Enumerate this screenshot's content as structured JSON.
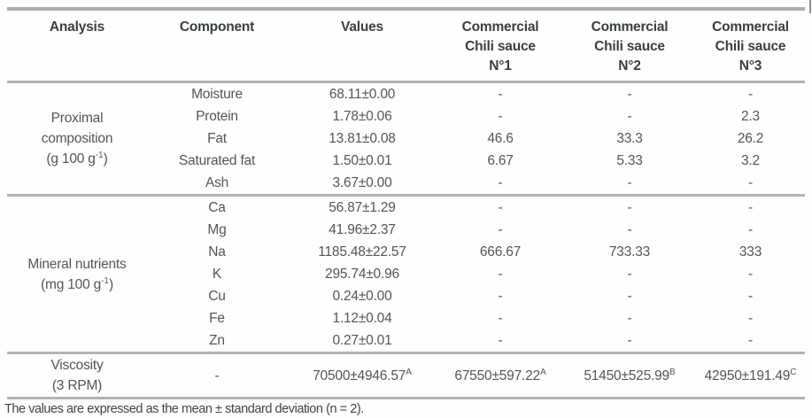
{
  "table": {
    "headers": [
      "Analysis",
      "Component",
      "Values",
      "Commercial\nChili sauce\nN°1",
      "Commercial\nChili sauce\nN°2",
      "Commercial\nChili sauce\nN°3"
    ],
    "groups": [
      {
        "name_lines": [
          "Proximal",
          "composition"
        ],
        "unit": {
          "pre": "(g 100 g",
          "sup": "-1",
          "post": ")"
        },
        "rows": [
          {
            "component": "Moisture",
            "value": "68.11±0.00",
            "sauces": [
              "-",
              "-",
              "-"
            ]
          },
          {
            "component": "Protein",
            "value": "1.78±0.06",
            "sauces": [
              "-",
              "-",
              "2.3"
            ]
          },
          {
            "component": "Fat",
            "value": "13.81±0.08",
            "sauces": [
              "46.6",
              "33.3",
              "26.2"
            ]
          },
          {
            "component": "Saturated fat",
            "value": "1.50±0.01",
            "sauces": [
              "6.67",
              "5.33",
              "3.2"
            ]
          },
          {
            "component": "Ash",
            "value": "3.67±0.00",
            "sauces": [
              "-",
              "-",
              "-"
            ]
          }
        ]
      },
      {
        "name_lines": [
          "Mineral nutrients"
        ],
        "unit": {
          "pre": "(mg 100 g",
          "sup": "-1",
          "post": ")"
        },
        "rows": [
          {
            "component": "Ca",
            "value": "56.87±1.29",
            "sauces": [
              "-",
              "-",
              "-"
            ]
          },
          {
            "component": "Mg",
            "value": "41.96±2.37",
            "sauces": [
              "-",
              "-",
              "-"
            ]
          },
          {
            "component": "Na",
            "value": "1185.48±22.57",
            "sauces": [
              "666.67",
              "733.33",
              "333"
            ]
          },
          {
            "component": "K",
            "value": "295.74±0.96",
            "sauces": [
              "-",
              "-",
              "-"
            ]
          },
          {
            "component": "Cu",
            "value": "0.24±0.00",
            "sauces": [
              "-",
              "-",
              "-"
            ]
          },
          {
            "component": "Fe",
            "value": "1.12±0.04",
            "sauces": [
              "-",
              "-",
              "-"
            ]
          },
          {
            "component": "Zn",
            "value": "0.27±0.01",
            "sauces": [
              "-",
              "-",
              "-"
            ]
          }
        ]
      },
      {
        "name_lines": [
          "Viscosity",
          "(3 RPM)"
        ],
        "unit": null,
        "rows": [
          {
            "component": "-",
            "value": {
              "text": "70500±4946.57",
              "sup": "A"
            },
            "sauces": [
              {
                "text": "67550±597.22",
                "sup": "A"
              },
              {
                "text": "51450±525.99",
                "sup": "B"
              },
              {
                "text": "42950±191.49",
                "sup": "C"
              }
            ]
          }
        ]
      }
    ]
  },
  "footnote": "The values are expressed as the mean ± standard deviation (n = 2)."
}
